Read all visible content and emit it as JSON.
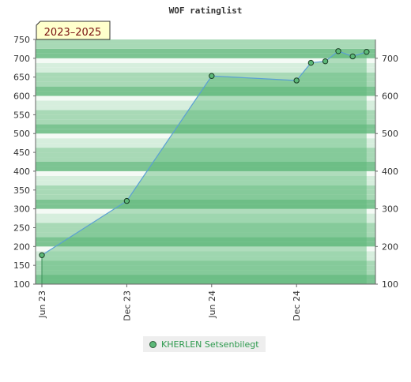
{
  "chart_data": {
    "type": "area",
    "title": "WOF ratinglist",
    "badge": "2023–2025",
    "ylim": [
      100,
      750
    ],
    "yticks": [
      "100",
      "150",
      "200",
      "250",
      "300",
      "350",
      "400",
      "450",
      "500",
      "550",
      "600",
      "650",
      "700",
      "750"
    ],
    "yticks_right": [
      "100",
      "200",
      "300",
      "400",
      "500",
      "600",
      "700"
    ],
    "xticks": [
      {
        "date": "2023-06-01",
        "label": "Jun 23"
      },
      {
        "date": "2023-12-01",
        "label": "Dec 23"
      },
      {
        "date": "2024-06-01",
        "label": "Jun 24"
      },
      {
        "date": "2024-12-01",
        "label": "Dec 24"
      }
    ],
    "xlim": [
      "2023-06-01",
      "2025-06-01"
    ],
    "series": [
      {
        "name": "KHERLEN Setsenbilegt",
        "points": [
          {
            "x": "2023-06-01",
            "y": 177
          },
          {
            "x": "2023-12-01",
            "y": 321
          },
          {
            "x": "2024-06-01",
            "y": 653
          },
          {
            "x": "2024-12-01",
            "y": 641
          },
          {
            "x": "2025-01-01",
            "y": 688
          },
          {
            "x": "2025-02-01",
            "y": 692
          },
          {
            "x": "2025-03-01",
            "y": 719
          },
          {
            "x": "2025-04-01",
            "y": 705
          },
          {
            "x": "2025-05-01",
            "y": 717
          }
        ]
      }
    ],
    "grid": true,
    "legend_position": "bottom-center",
    "colors": {
      "area": "#5cb878",
      "line": "#5a9fd4",
      "marker_fill": "#5cb878",
      "marker_stroke": "#1a3d24",
      "band_dark": "#7cc492",
      "band_mid": "#a8d9b6",
      "band_light": "#d6eedd",
      "band_white": "#f4faf5",
      "legend_text": "#2e9a4e",
      "badge_bg": "#ffffcc"
    }
  }
}
